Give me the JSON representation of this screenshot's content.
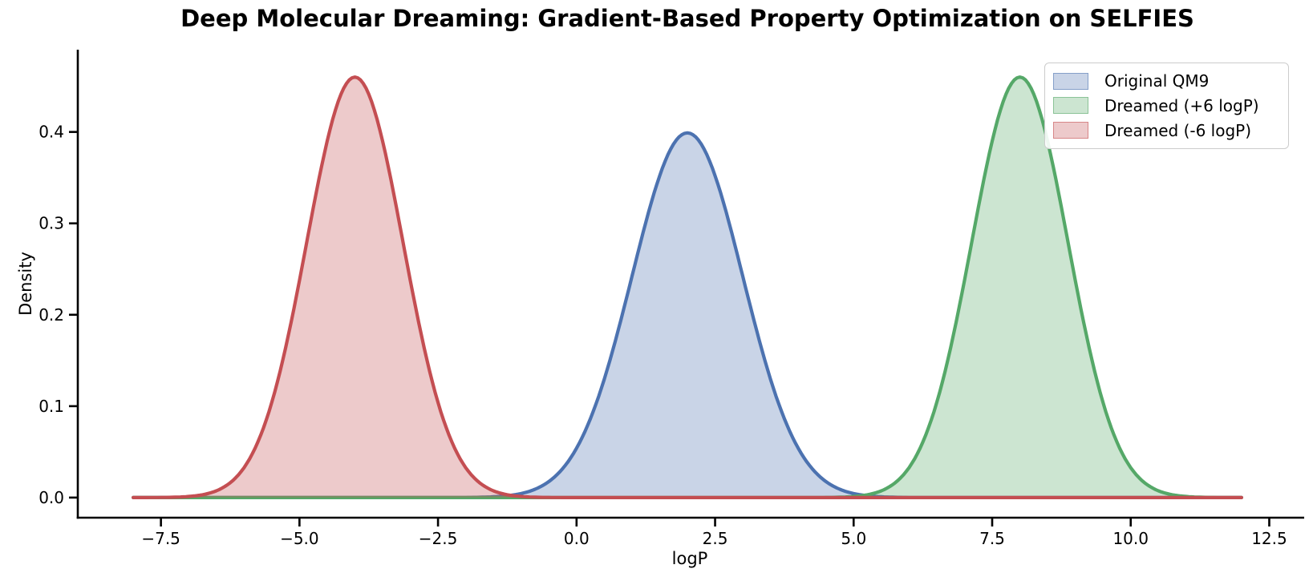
{
  "chart_data": {
    "type": "area",
    "subtype": "kde-density-curves",
    "title": "Deep Molecular Dreaming: Gradient-Based Property Optimization on SELFIES",
    "xlabel": "logP",
    "ylabel": "Density",
    "xlim": [
      -9,
      13
    ],
    "ylim": [
      -0.022,
      0.49
    ],
    "grid": false,
    "legend_position": "upper right",
    "x_ticks": [
      -7.5,
      -5.0,
      -2.5,
      0.0,
      2.5,
      5.0,
      7.5,
      10.0,
      12.5
    ],
    "x_tick_labels": [
      "−7.5",
      "−5.0",
      "−2.5",
      "0.0",
      "2.5",
      "5.0",
      "7.5",
      "10.0",
      "12.5"
    ],
    "y_ticks": [
      0.0,
      0.1,
      0.2,
      0.3,
      0.4
    ],
    "y_tick_labels": [
      "0.0",
      "0.1",
      "0.2",
      "0.3",
      "0.4"
    ],
    "curve_x_range": [
      -8,
      12
    ],
    "series": [
      {
        "name": "Original QM9",
        "shape": "gaussian",
        "mean": 2.0,
        "sigma": 1.0,
        "peak_density": 0.399,
        "line_color": "#4c72b0",
        "fill_color": "rgba(76,114,176,0.30)"
      },
      {
        "name": "Dreamed (+6 logP)",
        "shape": "gaussian",
        "mean": 8.0,
        "sigma": 0.87,
        "peak_density": 0.46,
        "line_color": "#55a868",
        "fill_color": "rgba(85,168,104,0.30)"
      },
      {
        "name": "Dreamed (-6 logP)",
        "shape": "gaussian",
        "mean": -4.0,
        "sigma": 0.87,
        "peak_density": 0.46,
        "line_color": "#c44e52",
        "fill_color": "rgba(196,78,82,0.30)"
      }
    ]
  },
  "legend": {
    "items": [
      {
        "label": "Original QM9",
        "swatch_fill": "rgba(76,114,176,0.30)",
        "swatch_border": "rgba(76,114,176,0.55)"
      },
      {
        "label": "Dreamed (+6 logP)",
        "swatch_fill": "rgba(85,168,104,0.30)",
        "swatch_border": "rgba(85,168,104,0.55)"
      },
      {
        "label": "Dreamed (-6 logP)",
        "swatch_fill": "rgba(196,78,82,0.30)",
        "swatch_border": "rgba(196,78,82,0.55)"
      }
    ]
  }
}
